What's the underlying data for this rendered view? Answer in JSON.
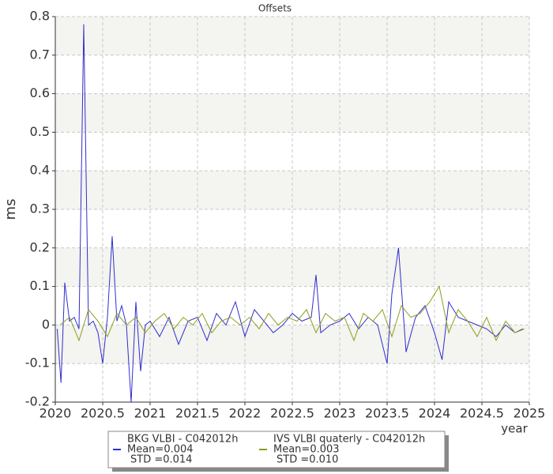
{
  "chart_data": {
    "type": "line",
    "title": "Offsets",
    "xlabel": "year",
    "ylabel": "ms",
    "xlim": [
      2020,
      2025
    ],
    "xticks": [
      2020,
      2020.5,
      2021,
      2021.5,
      2022,
      2022.5,
      2023,
      2023.5,
      2024,
      2024.5,
      2025
    ],
    "ylim": [
      -0.2,
      0.8
    ],
    "yticks": [
      -0.2,
      -0.1,
      0,
      0.1,
      0.2,
      0.3,
      0.4,
      0.5,
      0.6,
      0.7,
      0.8
    ],
    "grid": true,
    "series": [
      {
        "name": "BKG VLBI - C042012h",
        "mean_label": "Mean=0.004",
        "std_label": "STD =0.014",
        "color": "#2f2fd0",
        "x": [
          2020.02,
          2020.06,
          2020.1,
          2020.15,
          2020.2,
          2020.25,
          2020.3,
          2020.35,
          2020.4,
          2020.45,
          2020.5,
          2020.55,
          2020.6,
          2020.65,
          2020.7,
          2020.75,
          2020.8,
          2020.85,
          2020.9,
          2020.95,
          2021.0,
          2021.1,
          2021.2,
          2021.3,
          2021.4,
          2021.5,
          2021.6,
          2021.7,
          2021.8,
          2021.9,
          2022.0,
          2022.1,
          2022.2,
          2022.3,
          2022.4,
          2022.5,
          2022.6,
          2022.7,
          2022.75,
          2022.8,
          2022.9,
          2023.0,
          2023.1,
          2023.2,
          2023.3,
          2023.4,
          2023.5,
          2023.55,
          2023.62,
          2023.7,
          2023.8,
          2023.9,
          2024.0,
          2024.08,
          2024.15,
          2024.25,
          2024.35,
          2024.45,
          2024.55,
          2024.65,
          2024.75,
          2024.85,
          2024.93
        ],
        "values": [
          -0.01,
          -0.15,
          0.11,
          0.01,
          0.02,
          -0.01,
          0.78,
          0.0,
          0.01,
          -0.02,
          -0.1,
          0.02,
          0.23,
          0.01,
          0.05,
          0.0,
          -0.2,
          0.06,
          -0.12,
          0.0,
          0.01,
          -0.03,
          0.02,
          -0.05,
          0.01,
          0.02,
          -0.04,
          0.03,
          0.0,
          0.06,
          -0.03,
          0.04,
          0.01,
          -0.02,
          0.0,
          0.03,
          0.01,
          0.02,
          0.13,
          -0.02,
          0.0,
          0.01,
          0.03,
          -0.01,
          0.02,
          0.0,
          -0.1,
          0.08,
          0.2,
          -0.07,
          0.02,
          0.05,
          -0.02,
          -0.09,
          0.06,
          0.02,
          0.01,
          0.0,
          -0.01,
          -0.03,
          0.0,
          -0.02,
          -0.01
        ]
      },
      {
        "name": "IVS VLBI quaterly - C042012h",
        "mean_label": "Mean=0.003",
        "std_label": "STD =0.010",
        "color": "#8c9e1a",
        "x": [
          2020.05,
          2020.15,
          2020.25,
          2020.35,
          2020.45,
          2020.55,
          2020.65,
          2020.75,
          2020.85,
          2020.95,
          2021.05,
          2021.15,
          2021.25,
          2021.35,
          2021.45,
          2021.55,
          2021.65,
          2021.75,
          2021.85,
          2021.95,
          2022.05,
          2022.15,
          2022.25,
          2022.35,
          2022.45,
          2022.55,
          2022.65,
          2022.75,
          2022.85,
          2022.95,
          2023.05,
          2023.15,
          2023.25,
          2023.35,
          2023.45,
          2023.55,
          2023.65,
          2023.75,
          2023.85,
          2023.95,
          2024.05,
          2024.15,
          2024.25,
          2024.35,
          2024.45,
          2024.55,
          2024.65,
          2024.75,
          2024.85,
          2024.95
        ],
        "values": [
          0.0,
          0.02,
          -0.04,
          0.04,
          0.01,
          -0.03,
          0.03,
          0.0,
          0.02,
          -0.02,
          0.01,
          0.03,
          -0.01,
          0.02,
          0.0,
          0.03,
          -0.02,
          0.01,
          0.02,
          0.0,
          0.02,
          -0.01,
          0.03,
          0.0,
          0.02,
          0.01,
          0.04,
          -0.02,
          0.03,
          0.01,
          0.02,
          -0.04,
          0.03,
          0.01,
          0.04,
          -0.03,
          0.05,
          0.02,
          0.03,
          0.06,
          0.1,
          -0.02,
          0.04,
          0.01,
          -0.03,
          0.02,
          -0.04,
          0.01,
          -0.02,
          -0.01
        ]
      }
    ]
  }
}
